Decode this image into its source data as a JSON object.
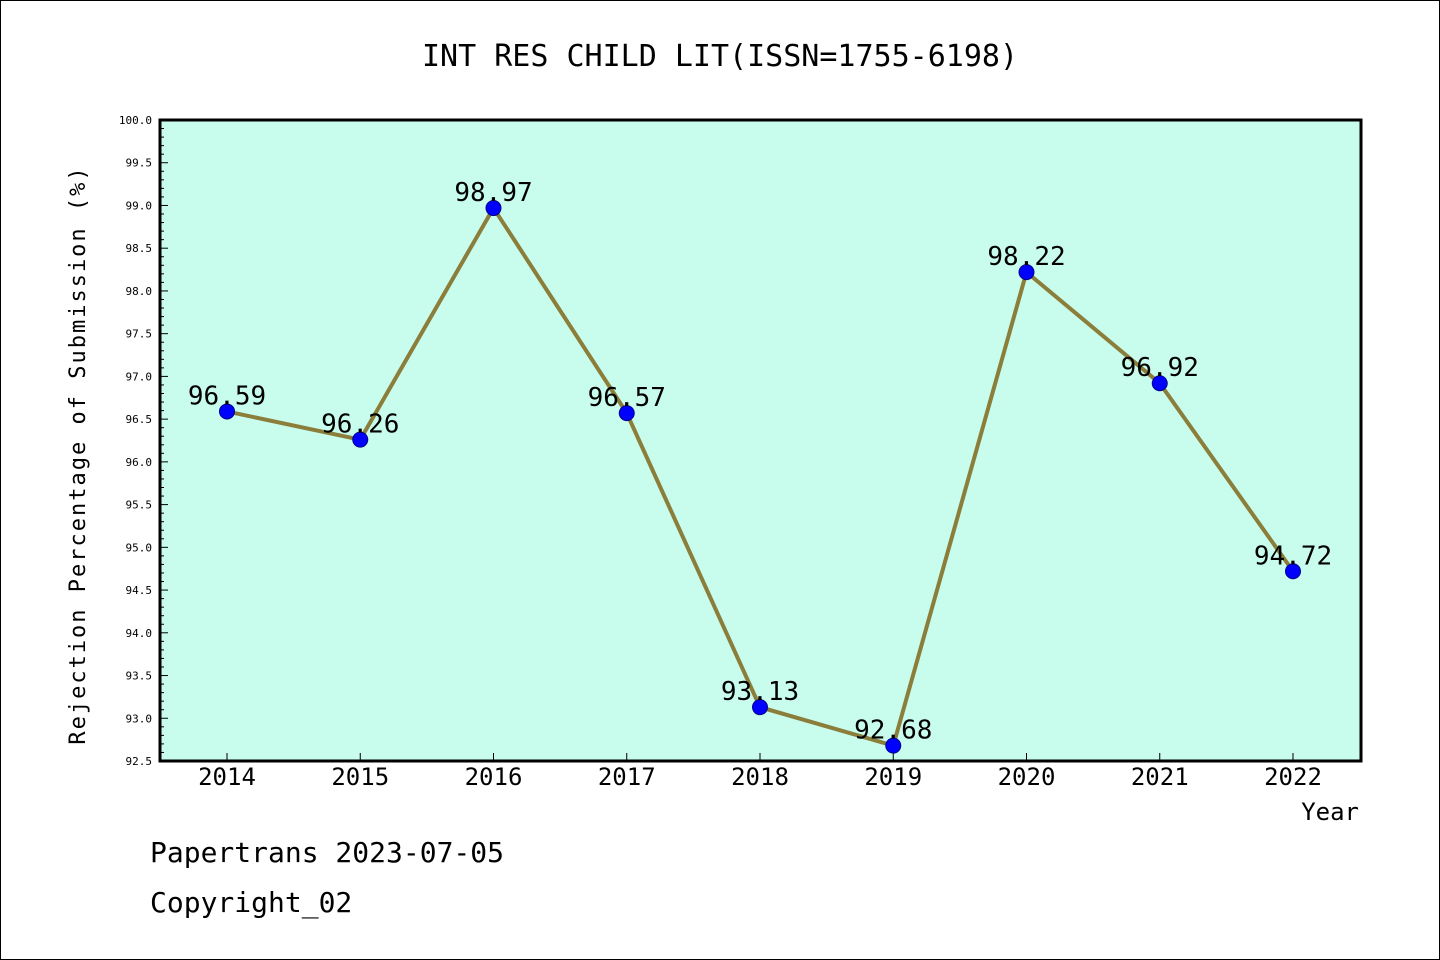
{
  "chart_data": {
    "type": "line",
    "title": "INT RES CHILD LIT(ISSN=1755-6198)",
    "xlabel": "Year",
    "ylabel": "Rejection Percentage of Submission (%)",
    "categories": [
      "2014",
      "2015",
      "2016",
      "2017",
      "2018",
      "2019",
      "2020",
      "2021",
      "2022"
    ],
    "values": [
      96.59,
      96.26,
      98.97,
      96.57,
      93.13,
      92.68,
      98.22,
      96.92,
      94.72
    ],
    "data_labels": [
      "96.59",
      "96.26",
      "98.97",
      "96.57",
      "93.13",
      "92.68",
      "98.22",
      "96.92",
      "94.72"
    ],
    "ylim": [
      92.5,
      100.0
    ],
    "yticks": [
      "92.5",
      "93.0",
      "93.5",
      "94.0",
      "94.5",
      "95.0",
      "95.5",
      "96.0",
      "96.5",
      "97.0",
      "97.5",
      "98.0",
      "98.5",
      "99.0",
      "99.5",
      "100.0"
    ],
    "grid": false,
    "colors": {
      "plot_bg": "#c8fcec",
      "line": "#8b7d3a",
      "marker": "#0000ff"
    }
  },
  "footer": {
    "line1": "Papertrans 2023-07-05",
    "line2": "Copyright_02"
  }
}
